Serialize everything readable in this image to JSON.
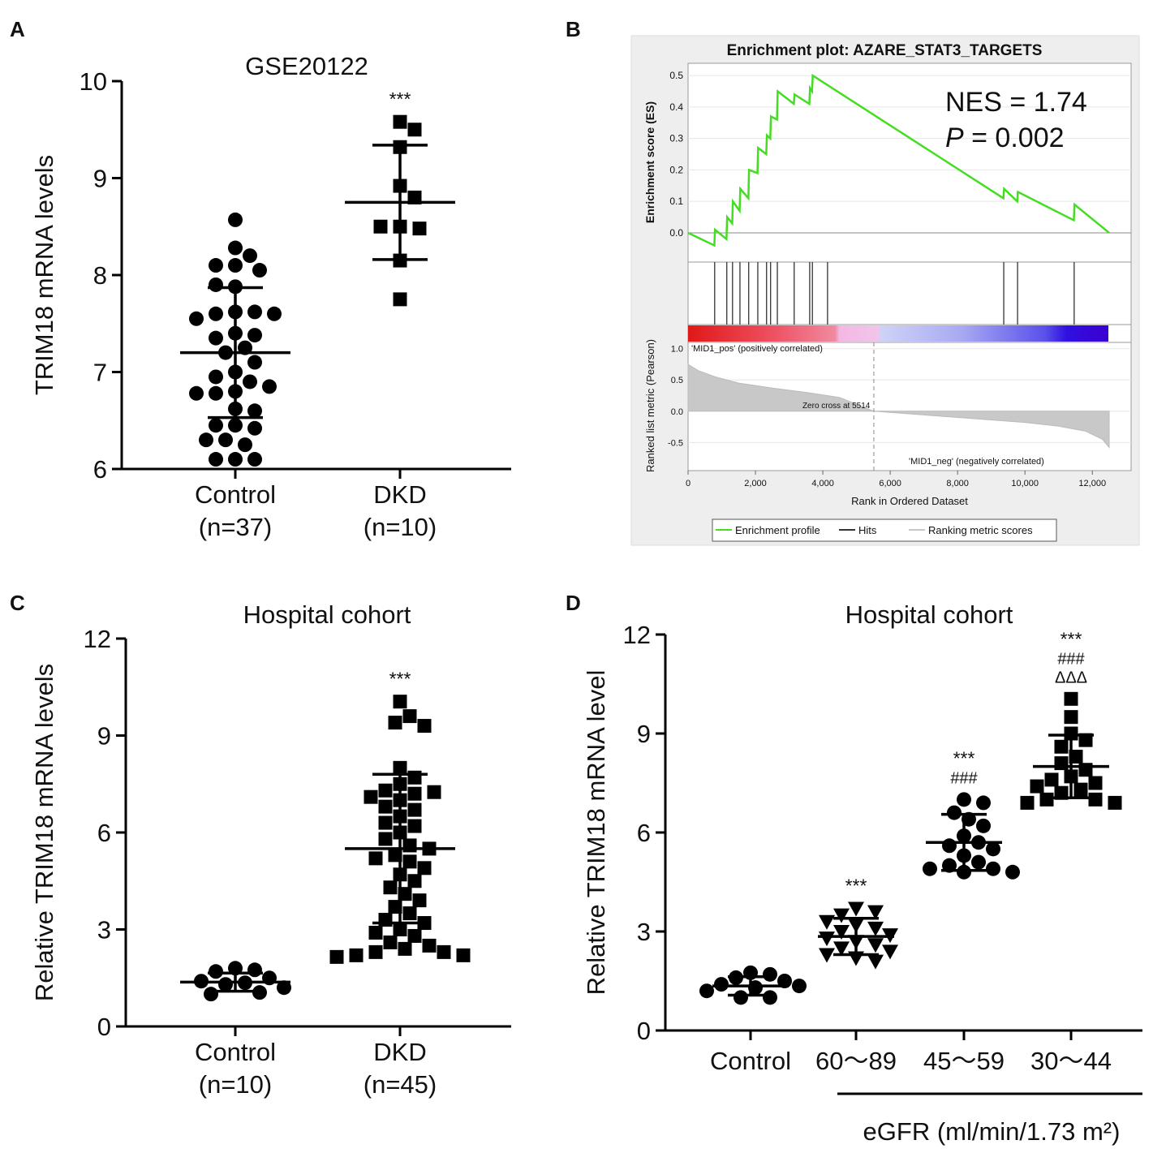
{
  "chart_data": [
    {
      "type": "dot",
      "panel": "A",
      "title": "GSE20122",
      "ylabel": "TRIM18 mRNA levels",
      "ylim": [
        6,
        10
      ],
      "yticks": [
        6,
        7,
        8,
        9,
        10
      ],
      "groups": [
        {
          "name": [
            "Control",
            "(n=37)"
          ],
          "marker": "circle",
          "values": [
            8.57,
            8.28,
            8.2,
            8.1,
            8.1,
            8.05,
            7.88,
            7.9,
            7.62,
            7.62,
            7.6,
            7.6,
            7.55,
            7.4,
            7.38,
            7.35,
            7.25,
            7.2,
            7.1,
            7.0,
            6.95,
            6.9,
            6.85,
            6.8,
            6.78,
            6.78,
            6.62,
            6.6,
            6.45,
            6.45,
            6.42,
            6.3,
            6.3,
            6.25,
            6.1,
            6.1,
            6.1
          ],
          "mean": 7.2,
          "sd": 0.67
        },
        {
          "name": [
            "DKD",
            "(n=10)"
          ],
          "marker": "square",
          "values": [
            9.58,
            9.5,
            9.32,
            8.92,
            8.8,
            8.5,
            8.48,
            8.5,
            8.15,
            7.75
          ],
          "mean": 8.75,
          "sd": 0.59,
          "annotation": [
            "***"
          ]
        }
      ]
    },
    {
      "type": "gsea",
      "panel": "B",
      "title": "Enrichment plot: AZARE_STAT3_TARGETS",
      "ylabel": "Enrichment score (ES)",
      "ylim": [
        -0.093,
        0.539
      ],
      "yticks": [
        {
          "value": 0,
          "label": "0.0"
        },
        0.1,
        0.2,
        0.3,
        0.4,
        0.5
      ],
      "xlim": [
        0,
        13150
      ],
      "xticks": [
        0,
        {
          "value": 2000,
          "label": "2,000"
        },
        {
          "value": 4000,
          "label": "4,000"
        },
        {
          "value": 6000,
          "label": "6,000"
        },
        {
          "value": 8000,
          "label": "8,000"
        },
        {
          "value": 10000,
          "label": "10,000"
        },
        {
          "value": 12000,
          "label": "12,000"
        }
      ],
      "xlabel": "Rank in Ordered Dataset",
      "nes_text": "NES = 1.74",
      "p_text": [
        "P",
        " = 0.002"
      ],
      "es_curve": {
        "color": "#44dd22",
        "x": [
          0,
          780,
          800,
          1140,
          1160,
          1310,
          1330,
          1530,
          1550,
          1790,
          1810,
          2060,
          2080,
          2320,
          2340,
          2440,
          2460,
          2640,
          2660,
          3140,
          3160,
          3600,
          3620,
          3680,
          3700,
          9360,
          9380,
          9770,
          9790,
          11450,
          11470,
          12500
        ],
        "y": [
          0,
          -0.04,
          0.01,
          -0.02,
          0.05,
          0.03,
          0.1,
          0.07,
          0.14,
          0.11,
          0.2,
          0.19,
          0.27,
          0.25,
          0.31,
          0.3,
          0.37,
          0.36,
          0.45,
          0.41,
          0.44,
          0.41,
          0.46,
          0.45,
          0.5,
          0.11,
          0.14,
          0.1,
          0.13,
          0.04,
          0.09,
          0
        ]
      },
      "hits": [
        790,
        1150,
        1320,
        1540,
        1800,
        2070,
        2330,
        2450,
        2650,
        3150,
        3610,
        3690,
        4140,
        9370,
        9780,
        11460
      ],
      "metric": {
        "ylabel": "Ranked list metric (Pearson)",
        "ylim": [
          -0.95,
          1.1
        ],
        "yticks": [
          {
            "value": 1,
            "label": "1.0"
          },
          0.5,
          {
            "value": 0,
            "label": "0.0"
          },
          -0.5
        ],
        "x": [
          0,
          300,
          800,
          1500,
          2500,
          3500,
          4500,
          5514,
          7000,
          8500,
          10000,
          11000,
          11800,
          12300,
          12500
        ],
        "y": [
          0.75,
          0.65,
          0.55,
          0.45,
          0.37,
          0.3,
          0.22,
          0,
          -0.06,
          -0.12,
          -0.18,
          -0.24,
          -0.32,
          -0.45,
          -0.58
        ]
      },
      "pos_label": "'MID1_pos' (positively correlated)",
      "neg_label": "'MID1_neg' (negatively correlated)",
      "zero_cross": {
        "value": 5514,
        "label": "Zero cross at 5514"
      },
      "legend": [
        {
          "name": "Enrichment profile",
          "color": "#44dd22"
        },
        {
          "name": "Hits",
          "color": "#333333"
        },
        {
          "name": "Ranking metric scores",
          "color": "#c8c8c8"
        }
      ]
    },
    {
      "type": "dot",
      "panel": "C",
      "title": "Hospital cohort",
      "ylabel": "Relative TRIM18 mRNA levels",
      "ylim": [
        0,
        12
      ],
      "yticks": [
        0,
        3,
        6,
        9,
        12
      ],
      "groups": [
        {
          "name": [
            "Control",
            "(n=10)"
          ],
          "marker": "circle",
          "values": [
            1.8,
            1.75,
            1.7,
            1.5,
            1.4,
            1.35,
            1.3,
            1.2,
            1.05,
            1.0
          ],
          "mean": 1.37,
          "sd": 0.28
        },
        {
          "name": [
            "DKD",
            "(n=45)"
          ],
          "marker": "square",
          "values": [
            10.05,
            9.6,
            9.4,
            9.3,
            8.0,
            7.7,
            7.5,
            7.2,
            7.3,
            7.25,
            7.1,
            7.0,
            6.8,
            6.7,
            6.5,
            6.3,
            6.2,
            6.0,
            5.8,
            5.6,
            5.5,
            5.3,
            5.2,
            5.1,
            4.9,
            4.7,
            4.5,
            4.3,
            4.1,
            3.9,
            3.7,
            3.5,
            3.3,
            3.2,
            3.0,
            2.9,
            2.8,
            2.6,
            2.5,
            2.4,
            2.3,
            2.3,
            2.2,
            2.2,
            2.15
          ],
          "mean": 5.5,
          "sd": 2.3,
          "annotation": [
            "***"
          ]
        }
      ]
    },
    {
      "type": "dot",
      "panel": "D",
      "title": "Hospital cohort",
      "ylabel": "Relative TRIM18 mRNA level",
      "ylim": [
        0,
        12
      ],
      "yticks": [
        0,
        3,
        6,
        9,
        12
      ],
      "xlabel": "eGFR (ml/min/1.73 m²)",
      "groups": [
        {
          "name": [
            "Control"
          ],
          "marker": "circle",
          "values": [
            1.75,
            1.7,
            1.6,
            1.5,
            1.4,
            1.35,
            1.3,
            1.2,
            1.0,
            1.0
          ],
          "mean": 1.35,
          "sd": 0.28
        },
        {
          "name": [
            "60～89"
          ],
          "marker": "triangle",
          "values": [
            3.7,
            3.6,
            3.5,
            3.3,
            3.2,
            3.1,
            3.0,
            2.9,
            2.8,
            2.7,
            2.6,
            2.5,
            2.4,
            2.3,
            2.2,
            2.1
          ],
          "mean": 2.85,
          "sd": 0.55,
          "annotation": [
            "***"
          ]
        },
        {
          "name": [
            "45～59"
          ],
          "marker": "circle",
          "values": [
            7.0,
            6.9,
            6.6,
            6.4,
            6.2,
            5.9,
            5.7,
            5.6,
            5.5,
            5.3,
            5.1,
            5.0,
            4.9,
            4.9,
            4.8,
            4.8
          ],
          "mean": 5.7,
          "sd": 0.85,
          "annotation": [
            "***",
            "###"
          ]
        },
        {
          "name": [
            "30～44"
          ],
          "marker": "square",
          "values": [
            10.05,
            9.5,
            9.0,
            8.8,
            8.6,
            8.3,
            8.1,
            7.9,
            7.7,
            7.6,
            7.5,
            7.4,
            7.3,
            7.2,
            7.0,
            7.0,
            6.9,
            6.9
          ],
          "mean": 8.0,
          "sd": 0.95,
          "annotation": [
            "***",
            "###",
            "ΔΔΔ"
          ]
        }
      ]
    }
  ]
}
